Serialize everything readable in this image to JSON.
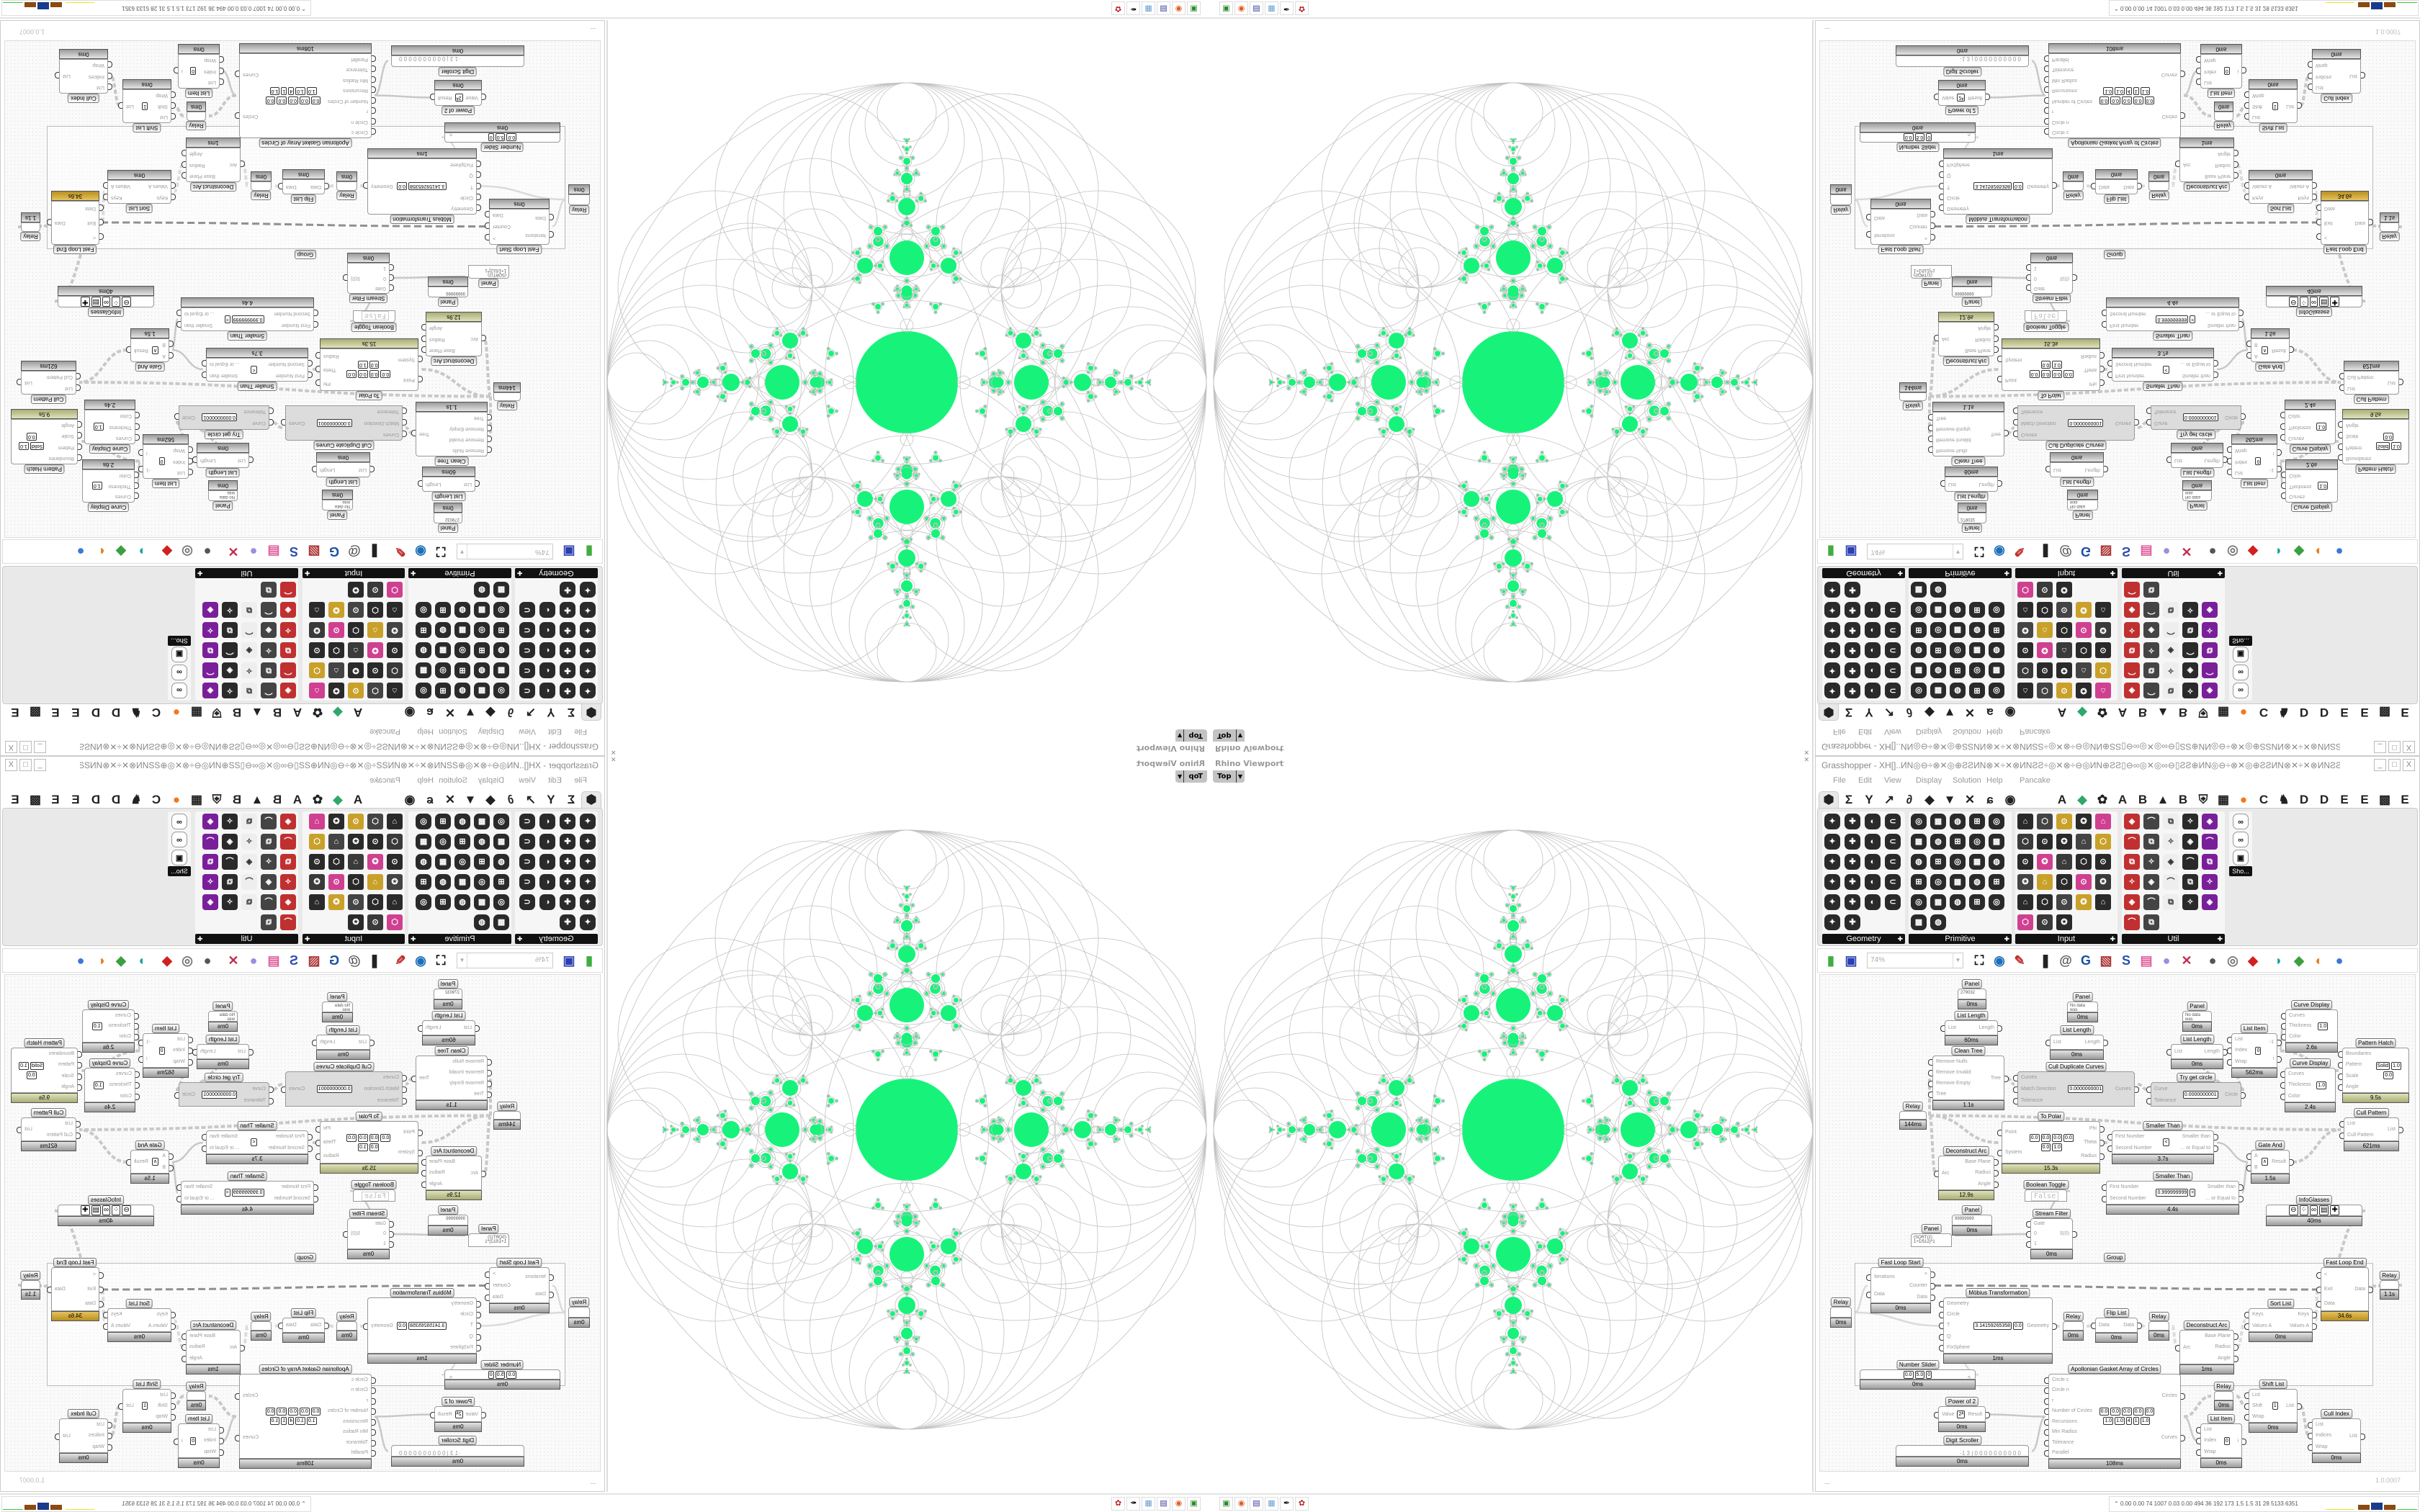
{
  "viewport": {
    "title": "Rhino Viewport",
    "view": "Top",
    "fill_color": "#17f37a",
    "line_color": "#c2c2c2"
  },
  "grasshopper": {
    "title": "Grasshopper - XH[]..ИN◎⊖÷⊗✕◎⊕ƧƧИN⊗✕÷✕⊗ИNƧƧ÷◎✕⊗÷⊖◎ИN⊕ƧƧ▯⊖∞◎✕◎∞⊖▯ƧƧ⊕ИN◎⊖÷⊗✕◎⊕ƧƧИN⊗✕÷✕⊗ИNƧƧ÷◎✕⊗÷⊖◎ИN.",
    "window_buttons": [
      "_",
      "□",
      "X"
    ],
    "menu": [
      "File",
      "Edit",
      "View",
      "Display",
      "Solution",
      "Help",
      "Pancake"
    ],
    "tabs": [
      "⬢",
      "Σ",
      "Y",
      "↗",
      "∂",
      "◆",
      "▼",
      "✕",
      "ɕ",
      "◉",
      "A",
      "◆",
      "✿",
      "A",
      "B",
      "▲",
      "B",
      "⛨",
      "▦",
      "●",
      "C",
      "♞",
      "D",
      "D",
      "E",
      "E",
      "▩",
      "E"
    ],
    "palette_panels": [
      "Geometry",
      "Primitive",
      "Input",
      "Util"
    ],
    "palette_extra": "Sho...",
    "toolbar": {
      "zoom": "74%",
      "icons": [
        {
          "name": "new-document",
          "glyph": "▮",
          "color": "#3fae3f"
        },
        {
          "name": "save",
          "glyph": "▣",
          "color": "#2b3fb3"
        },
        {
          "name": "zoom-extents",
          "glyph": "⛶",
          "color": "#111"
        },
        {
          "name": "preview-eye",
          "glyph": "◉",
          "color": "#1d6fb8"
        },
        {
          "name": "sketch",
          "glyph": "✎",
          "color": "#c0302a"
        },
        {
          "name": "bake",
          "glyph": "❚",
          "color": "#222"
        },
        {
          "name": "email",
          "glyph": "@",
          "color": "#555"
        },
        {
          "name": "gha",
          "glyph": "G",
          "color": "#1b4fa0"
        },
        {
          "name": "capture",
          "glyph": "▧",
          "color": "#a33"
        },
        {
          "name": "search",
          "glyph": "S",
          "color": "#2a4fb0"
        },
        {
          "name": "package",
          "glyph": "▤",
          "color": "#e05a9a"
        },
        {
          "name": "bulb",
          "glyph": "●",
          "color": "#9a8ee0"
        },
        {
          "name": "dna",
          "glyph": "✕",
          "color": "#c03050"
        },
        {
          "name": "shade-grey",
          "glyph": "●",
          "color": "#555"
        },
        {
          "name": "wire",
          "glyph": "◎",
          "color": "#777"
        },
        {
          "name": "shade-red",
          "glyph": "◆",
          "color": "#d02020"
        },
        {
          "name": "teal",
          "glyph": "◗",
          "color": "#1aa0a0"
        },
        {
          "name": "green",
          "glyph": "◆",
          "color": "#3aa040"
        },
        {
          "name": "orange-sphere",
          "glyph": "◐",
          "color": "#e08020"
        },
        {
          "name": "blue-sphere",
          "glyph": "●",
          "color": "#3a78d8"
        }
      ]
    },
    "status": {
      "left": "...",
      "version": "1.0.0007"
    }
  },
  "canvas": {
    "group_label": "Group",
    "components": [
      {
        "id": "panel1",
        "kind": "panel",
        "title": "Panel",
        "text": "279032",
        "footer": "0ms"
      },
      {
        "id": "listlen1",
        "title": "List Length",
        "in": [
          "List"
        ],
        "out": [
          "Length"
        ],
        "footer": "60ms"
      },
      {
        "id": "panel2",
        "kind": "panel",
        "title": "Panel",
        "text": "No data\nwas",
        "footer": "0ms"
      },
      {
        "id": "listlen2",
        "title": "List Length",
        "in": [
          "List"
        ],
        "out": [
          "Length"
        ],
        "footer": "0ms"
      },
      {
        "id": "panel3",
        "kind": "panel",
        "title": "Panel",
        "text": "No data\nwas",
        "footer": "0ms"
      },
      {
        "id": "listlen3",
        "title": "List Length",
        "in": [
          "List"
        ],
        "out": [
          "Length"
        ],
        "footer": "0ms"
      },
      {
        "id": "listitem1",
        "title": "List Item",
        "in": [
          "List",
          "Index",
          "Wrap"
        ],
        "out": [
          "-1",
          "i"
        ],
        "vals": [
          "0"
        ],
        "footer": "562ms"
      },
      {
        "id": "curvedisp1",
        "title": "Curve Display",
        "in": [
          "Curves",
          "Thickness",
          "Color"
        ],
        "out": [],
        "vals": [
          "1.0"
        ],
        "footer": "2.6s"
      },
      {
        "id": "curvedisp2",
        "title": "Curve Display",
        "in": [
          "Curves",
          "Thickness",
          "Color"
        ],
        "out": [],
        "vals": [
          "1.0"
        ],
        "footer": "2.4s"
      },
      {
        "id": "patternhatch",
        "title": "Pattern Hatch",
        "in": [
          "Boundaries",
          "Pattern",
          "Scale",
          "Angle"
        ],
        "out": [],
        "vals": [
          "Solid",
          "1.0",
          "0.0"
        ],
        "footer": "9.5s",
        "tone": "olive"
      },
      {
        "id": "cleantree",
        "title": "Clean Tree",
        "in": [
          "Remove Nulls",
          "Remove Invalid",
          "Remove Empty",
          "Tree"
        ],
        "out": [
          "Tree"
        ],
        "footer": "1.1s"
      },
      {
        "id": "culldup",
        "title": "Cull Duplicate Curves",
        "in": [
          "Curves",
          "Match Direction",
          "Tolerance"
        ],
        "out": [
          "Curves"
        ],
        "vals": [
          "0.0000000001"
        ],
        "tone": "disabled"
      },
      {
        "id": "trycircle",
        "title": "Try get circle",
        "in": [
          "Curve",
          "Tolerance"
        ],
        "out": [
          "Circle"
        ],
        "vals": [
          "0.0000000001"
        ],
        "tone": "disabled"
      },
      {
        "id": "relay1",
        "kind": "relay",
        "title": "Relay",
        "footer": "144ms"
      },
      {
        "id": "topolar",
        "title": "To Polar",
        "in": [
          "Point",
          "System"
        ],
        "out": [
          "Phi",
          "Theta",
          "Radius"
        ],
        "vals": [
          "0.0",
          "0.0",
          "0.0",
          "0.0",
          "0.0",
          "1.0"
        ],
        "footer": "15.3s",
        "tone": "olive"
      },
      {
        "id": "smaller1",
        "title": "Smaller Than",
        "in": [
          "First Number",
          "Second Number"
        ],
        "out": [
          "Smaller than",
          "... or Equal to"
        ],
        "vals": [
          "<"
        ],
        "footer": "3.7s"
      },
      {
        "id": "gateand",
        "title": "Gate And",
        "in": [
          "A",
          "B"
        ],
        "out": [
          "Result"
        ],
        "vals": [
          "∧"
        ],
        "footer": "1.5s"
      },
      {
        "id": "cullpattern",
        "title": "Cull Pattern",
        "in": [
          "List",
          "Cull Pattern"
        ],
        "out": [
          "List"
        ],
        "footer": "621ms"
      },
      {
        "id": "deconarc1",
        "title": "Deconstruct Arc",
        "in": [
          "Arc"
        ],
        "out": [
          "Base Plane",
          "Radius",
          "Angle"
        ],
        "footer": "12.9s",
        "tone": "olive"
      },
      {
        "id": "booltoggle",
        "kind": "toggle",
        "title": "Boolean Toggle",
        "text": "False"
      },
      {
        "id": "smaller2",
        "title": "Smaller Than",
        "in": [
          "First Number",
          "Second Number"
        ],
        "out": [
          "Smaller than",
          "... or Equal to"
        ],
        "vals": [
          "0.999999999",
          "<"
        ],
        "footer": "4.4s"
      },
      {
        "id": "infoglasses",
        "title": "InfoGlasses",
        "in": [],
        "out": [],
        "footer": "40ms"
      },
      {
        "id": "panel4",
        "kind": "panel",
        "title": "Panel",
        "text": "99999999",
        "footer": "0ms"
      },
      {
        "id": "streamfilter",
        "title": "Stream Filter",
        "in": [
          "Gate",
          "0",
          "1"
        ],
        "out": [
          "S(0)"
        ],
        "footer": "0ms"
      },
      {
        "id": "panel5",
        "kind": "panel",
        "title": "Panel",
        "text": "{SQRT(2)\n1+1/512}*1"
      },
      {
        "id": "fastloopstart",
        "title": "Fast Loop Start",
        "in": [
          "Iterations",
          "Data"
        ],
        "out": [
          ">",
          "Counter",
          "Data"
        ],
        "footer": "0ms"
      },
      {
        "id": "fastloopend",
        "title": "Fast Loop End",
        "in": [
          "<",
          "Exit",
          "Data"
        ],
        "out": [
          "Data"
        ],
        "footer": "34.6s",
        "tone": "gold"
      },
      {
        "id": "relay2",
        "kind": "relay",
        "title": "Relay",
        "footer": "1.1s"
      },
      {
        "id": "relay3",
        "kind": "relay",
        "title": "Relay",
        "footer": "0ms"
      },
      {
        "id": "mobius",
        "title": "Möbius Transformation",
        "in": [
          "Geometry",
          "Circle",
          "T",
          "Q",
          "FixSphere"
        ],
        "out": [
          "Geometry"
        ],
        "vals": [
          "3.14159265358",
          "0.0"
        ],
        "footer": "1ms"
      },
      {
        "id": "relay4",
        "kind": "relay",
        "title": "Relay",
        "footer": "0ms"
      },
      {
        "id": "fliplist",
        "title": "Flip List",
        "in": [
          "Data"
        ],
        "out": [
          "Data"
        ],
        "footer": "0ms"
      },
      {
        "id": "relay5",
        "kind": "relay",
        "title": "Relay",
        "footer": "0ms"
      },
      {
        "id": "deconarc2",
        "title": "Deconstruct Arc",
        "in": [
          "Arc"
        ],
        "out": [
          "Base Plane",
          "Radius",
          "Angle"
        ],
        "footer": "1ms"
      },
      {
        "id": "sortlist",
        "title": "Sort List",
        "in": [
          "Keys",
          "Values A"
        ],
        "out": [
          "Keys",
          "Values A"
        ],
        "footer": "0ms"
      },
      {
        "id": "numslider",
        "kind": "slider",
        "title": "Number Slider",
        "vals": [
          "0.0",
          "5.0",
          "0"
        ],
        "text": "5",
        "footer": "0ms"
      },
      {
        "id": "apollonian",
        "title": "Apollonian Gasket Array of Circles",
        "in": [
          "Circle c",
          "Circle n",
          "r",
          "Number of Circles",
          "Recursions",
          "Min Radius",
          "Tolerance",
          "Parallel"
        ],
        "out": [
          "Circles",
          "Curves"
        ],
        "vals": [
          "0.0",
          "0.0",
          "0.0",
          "0.0",
          "0.0",
          "1.0",
          "1.0",
          "4",
          "1",
          "1.0"
        ],
        "footer": "108ms"
      },
      {
        "id": "relay6",
        "kind": "relay",
        "title": "Relay",
        "footer": "0ms"
      },
      {
        "id": "shiftlist",
        "title": "Shift List",
        "in": [
          "List",
          "Shift",
          "Wrap"
        ],
        "out": [
          "List"
        ],
        "vals": [
          "1"
        ],
        "footer": "0ms"
      },
      {
        "id": "listitem2",
        "title": "List Item",
        "in": [
          "List",
          "Index",
          "Wrap"
        ],
        "out": [
          "i"
        ],
        "vals": [
          "0"
        ],
        "footer": "0ms"
      },
      {
        "id": "cullindex",
        "title": "Cull Index",
        "in": [
          "List",
          "Indices",
          "Wrap"
        ],
        "out": [
          "List"
        ],
        "footer": "0ms"
      },
      {
        "id": "power2",
        "title": "Power of 2",
        "in": [
          "Value"
        ],
        "out": [
          "Result"
        ],
        "vals": [
          "2ᴬ"
        ],
        "footer": "0ms"
      },
      {
        "id": "digitscroller",
        "kind": "scroller",
        "title": "Digit Scroller",
        "text": "-1 3 | 0 0 0 0 0 0 0 0 0 0",
        "footer": "0ms"
      }
    ]
  },
  "taskbar": {
    "icons": [
      "app-launcher",
      "firefox",
      "floppy-64",
      "calculator",
      "inkscape",
      "red-app"
    ],
    "perf_text": "0.00 0.00 74 1007 0.03 0.00 494 36 192 173 1.5 1.5 31 28 5133 6351"
  }
}
